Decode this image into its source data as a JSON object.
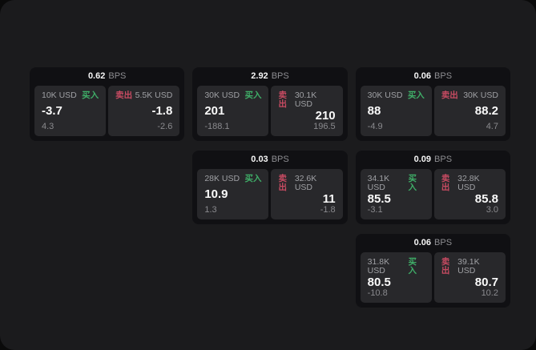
{
  "colors": {
    "background": "#0a0a0a",
    "panel": "#1b1b1d",
    "card": "#101013",
    "tile": "#28282b",
    "text_primary": "#f5f5f5",
    "text_secondary": "#9fa0a4",
    "text_muted": "#8a8a8e",
    "buy_green": "#3fae68",
    "sell_red": "#c74b62"
  },
  "cards": [
    {
      "bps_value": "0.62",
      "bps_unit": "BPS",
      "buy": {
        "notional": "10K USD",
        "label": "买入",
        "value": "-3.7",
        "change": "4.3"
      },
      "sell": {
        "label": "卖出",
        "notional": "5.5K USD",
        "value": "-1.8",
        "change": "-2.6"
      }
    },
    {
      "bps_value": "2.92",
      "bps_unit": "BPS",
      "buy": {
        "notional": "30K USD",
        "label": "买入",
        "value": "201",
        "change": "-188.1"
      },
      "sell": {
        "label": "卖出",
        "notional": "30.1K USD",
        "value": "210",
        "change": "196.5"
      }
    },
    {
      "bps_value": "0.06",
      "bps_unit": "BPS",
      "buy": {
        "notional": "30K USD",
        "label": "买入",
        "value": "88",
        "change": "-4.9"
      },
      "sell": {
        "label": "卖出",
        "notional": "30K USD",
        "value": "88.2",
        "change": "4.7"
      }
    },
    {
      "bps_value": "0.03",
      "bps_unit": "BPS",
      "buy": {
        "notional": "28K USD",
        "label": "买入",
        "value": "10.9",
        "change": "1.3"
      },
      "sell": {
        "label": "卖出",
        "notional": "32.6K USD",
        "value": "11",
        "change": "-1.8"
      }
    },
    {
      "bps_value": "0.09",
      "bps_unit": "BPS",
      "buy": {
        "notional": "34.1K USD",
        "label": "买入",
        "value": "85.5",
        "change": "-3.1"
      },
      "sell": {
        "label": "卖出",
        "notional": "32.8K USD",
        "value": "85.8",
        "change": "3.0"
      }
    },
    {
      "bps_value": "0.06",
      "bps_unit": "BPS",
      "buy": {
        "notional": "31.8K USD",
        "label": "买入",
        "value": "80.5",
        "change": "-10.8"
      },
      "sell": {
        "label": "卖出",
        "notional": "39.1K USD",
        "value": "80.7",
        "change": "10.2"
      }
    }
  ]
}
